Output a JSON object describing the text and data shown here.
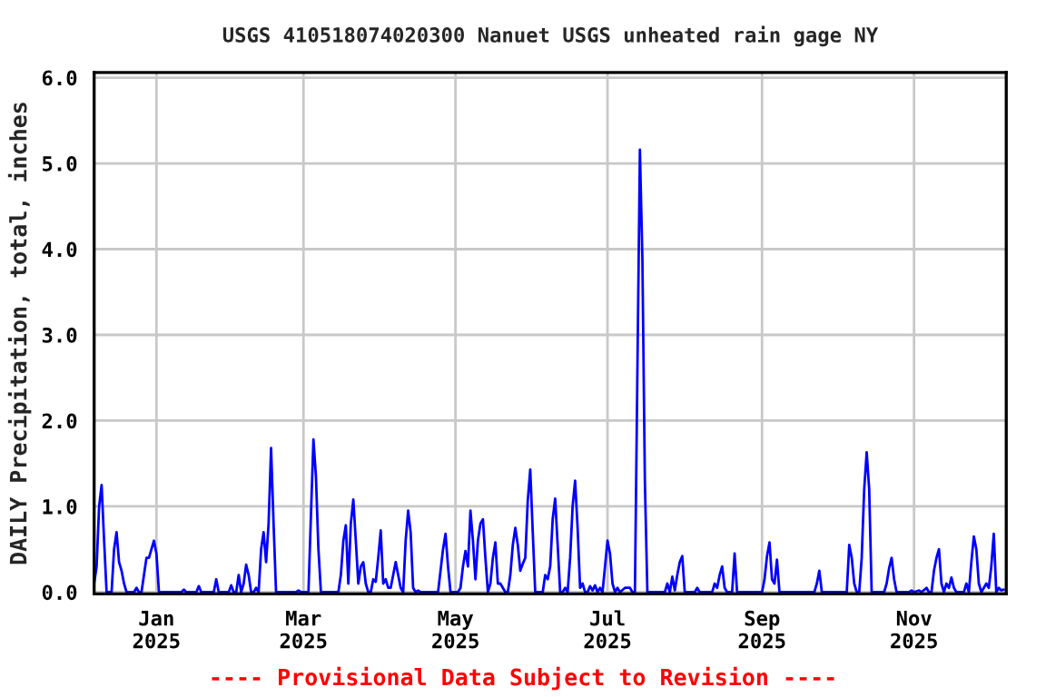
{
  "chart_data": {
    "type": "line",
    "title": "USGS 410518074020300 Nanuet USGS unheated rain gage NY",
    "ylabel": "DAILY Precipitation, total, inches",
    "annotations": [
      "---- Provisional Data Subject to Revision ----"
    ],
    "xlim": [
      "2024-12-07",
      "2025-12-08"
    ],
    "xticks": [
      {
        "value": "2025-01-01",
        "label": "Jan\n2025"
      },
      {
        "value": "2025-03-01",
        "label": "Mar\n2025"
      },
      {
        "value": "2025-05-01",
        "label": "May\n2025"
      },
      {
        "value": "2025-07-01",
        "label": "Jul\n2025"
      },
      {
        "value": "2025-09-01",
        "label": "Sep\n2025"
      },
      {
        "value": "2025-11-01",
        "label": "Nov\n2025"
      }
    ],
    "ylim": [
      -0.02,
      6.06
    ],
    "yticks": [
      {
        "value": 0,
        "label": "0.0"
      },
      {
        "value": 1,
        "label": "1.0"
      },
      {
        "value": 2,
        "label": "2.0"
      },
      {
        "value": 3,
        "label": "3.0"
      },
      {
        "value": 4,
        "label": "4.0"
      },
      {
        "value": 5,
        "label": "5.0"
      },
      {
        "value": 6,
        "label": "6.0"
      }
    ],
    "grid": true,
    "line_style": "solid",
    "marker": "none",
    "series": [
      {
        "color": "#0000ff",
        "x": [
          "2024-12-07",
          "2024-12-08",
          "2024-12-09",
          "2024-12-10",
          "2024-12-11",
          "2024-12-12",
          "2024-12-14",
          "2024-12-15",
          "2024-12-16",
          "2024-12-17",
          "2024-12-18",
          "2024-12-19",
          "2024-12-20",
          "2024-12-23",
          "2024-12-24",
          "2024-12-25",
          "2024-12-26",
          "2024-12-27",
          "2024-12-28",
          "2024-12-29",
          "2024-12-30",
          "2024-12-31",
          "2025-01-01",
          "2025-01-02",
          "2025-01-11",
          "2025-01-12",
          "2025-01-13",
          "2025-01-17",
          "2025-01-18",
          "2025-01-19",
          "2025-01-24",
          "2025-01-25",
          "2025-01-26",
          "2025-01-30",
          "2025-01-31",
          "2025-02-01",
          "2025-02-02",
          "2025-02-03",
          "2025-02-04",
          "2025-02-05",
          "2025-02-06",
          "2025-02-07",
          "2025-02-08",
          "2025-02-09",
          "2025-02-10",
          "2025-02-11",
          "2025-02-12",
          "2025-02-13",
          "2025-02-14",
          "2025-02-15",
          "2025-02-16",
          "2025-02-17",
          "2025-02-18",
          "2025-02-26",
          "2025-02-27",
          "2025-02-28",
          "2025-03-03",
          "2025-03-04",
          "2025-03-05",
          "2025-03-06",
          "2025-03-07",
          "2025-03-08",
          "2025-03-15",
          "2025-03-16",
          "2025-03-17",
          "2025-03-18",
          "2025-03-19",
          "2025-03-20",
          "2025-03-21",
          "2025-03-22",
          "2025-03-23",
          "2025-03-24",
          "2025-03-25",
          "2025-03-26",
          "2025-03-27",
          "2025-03-28",
          "2025-03-29",
          "2025-03-30",
          "2025-03-31",
          "2025-04-01",
          "2025-04-02",
          "2025-04-03",
          "2025-04-04",
          "2025-04-05",
          "2025-04-06",
          "2025-04-07",
          "2025-04-08",
          "2025-04-09",
          "2025-04-10",
          "2025-04-11",
          "2025-04-12",
          "2025-04-13",
          "2025-04-14",
          "2025-04-15",
          "2025-04-16",
          "2025-04-17",
          "2025-04-24",
          "2025-04-25",
          "2025-04-26",
          "2025-04-27",
          "2025-04-28",
          "2025-04-29",
          "2025-05-02",
          "2025-05-03",
          "2025-05-04",
          "2025-05-05",
          "2025-05-06",
          "2025-05-07",
          "2025-05-08",
          "2025-05-09",
          "2025-05-10",
          "2025-05-11",
          "2025-05-12",
          "2025-05-13",
          "2025-05-14",
          "2025-05-15",
          "2025-05-16",
          "2025-05-17",
          "2025-05-18",
          "2025-05-19",
          "2025-05-20",
          "2025-05-21",
          "2025-05-22",
          "2025-05-23",
          "2025-05-24",
          "2025-05-25",
          "2025-05-26",
          "2025-05-27",
          "2025-05-28",
          "2025-05-29",
          "2025-05-30",
          "2025-05-31",
          "2025-06-01",
          "2025-06-02",
          "2025-06-05",
          "2025-06-06",
          "2025-06-07",
          "2025-06-08",
          "2025-06-09",
          "2025-06-10",
          "2025-06-11",
          "2025-06-12",
          "2025-06-13",
          "2025-06-14",
          "2025-06-15",
          "2025-06-16",
          "2025-06-17",
          "2025-06-18",
          "2025-06-19",
          "2025-06-20",
          "2025-06-21",
          "2025-06-22",
          "2025-06-23",
          "2025-06-24",
          "2025-06-25",
          "2025-06-26",
          "2025-06-27",
          "2025-06-28",
          "2025-06-29",
          "2025-06-30",
          "2025-07-01",
          "2025-07-02",
          "2025-07-03",
          "2025-07-04",
          "2025-07-05",
          "2025-07-06",
          "2025-07-08",
          "2025-07-10",
          "2025-07-11",
          "2025-07-12",
          "2025-07-13",
          "2025-07-14",
          "2025-07-15",
          "2025-07-16",
          "2025-07-17",
          "2025-07-24",
          "2025-07-25",
          "2025-07-26",
          "2025-07-27",
          "2025-07-28",
          "2025-07-29",
          "2025-07-30",
          "2025-07-31",
          "2025-08-01",
          "2025-08-05",
          "2025-08-06",
          "2025-08-07",
          "2025-08-12",
          "2025-08-13",
          "2025-08-14",
          "2025-08-15",
          "2025-08-16",
          "2025-08-17",
          "2025-08-18",
          "2025-08-20",
          "2025-08-21",
          "2025-08-22",
          "2025-09-01",
          "2025-09-02",
          "2025-09-03",
          "2025-09-04",
          "2025-09-05",
          "2025-09-06",
          "2025-09-07",
          "2025-09-08",
          "2025-09-22",
          "2025-09-23",
          "2025-09-24",
          "2025-09-25",
          "2025-10-05",
          "2025-10-06",
          "2025-10-07",
          "2025-10-08",
          "2025-10-09",
          "2025-10-10",
          "2025-10-11",
          "2025-10-12",
          "2025-10-13",
          "2025-10-14",
          "2025-10-15",
          "2025-10-20",
          "2025-10-21",
          "2025-10-22",
          "2025-10-23",
          "2025-10-24",
          "2025-10-25",
          "2025-10-30",
          "2025-10-31",
          "2025-11-01",
          "2025-11-03",
          "2025-11-04",
          "2025-11-06",
          "2025-11-07",
          "2025-11-08",
          "2025-11-09",
          "2025-11-10",
          "2025-11-11",
          "2025-11-12",
          "2025-11-13",
          "2025-11-14",
          "2025-11-15",
          "2025-11-16",
          "2025-11-17",
          "2025-11-18",
          "2025-11-21",
          "2025-11-22",
          "2025-11-23",
          "2025-11-24",
          "2025-11-25",
          "2025-11-26",
          "2025-11-27",
          "2025-11-28",
          "2025-11-30",
          "2025-12-01",
          "2025-12-02",
          "2025-12-03",
          "2025-12-04",
          "2025-12-05",
          "2025-12-06",
          "2025-12-07"
        ],
        "values": [
          0.1,
          0.3,
          1.0,
          1.25,
          0.6,
          0,
          0,
          0.5,
          0.7,
          0.35,
          0.25,
          0.1,
          0,
          0,
          0.05,
          0,
          0,
          0.2,
          0.4,
          0.4,
          0.5,
          0.6,
          0.45,
          0,
          0,
          0.03,
          0,
          0,
          0.07,
          0,
          0,
          0.15,
          0,
          0,
          0.08,
          0,
          0,
          0.2,
          0,
          0.1,
          0.32,
          0.2,
          0,
          0,
          0.05,
          0,
          0.5,
          0.7,
          0.35,
          0.8,
          1.68,
          0.8,
          0,
          0,
          0.02,
          0,
          0,
          0.9,
          1.78,
          1.35,
          0.5,
          0,
          0,
          0.2,
          0.6,
          0.78,
          0.1,
          0.8,
          1.08,
          0.6,
          0.1,
          0.3,
          0.35,
          0.1,
          0,
          0,
          0.15,
          0.12,
          0.4,
          0.72,
          0.1,
          0.15,
          0.05,
          0.05,
          0.2,
          0.35,
          0.2,
          0.05,
          0,
          0.6,
          0.95,
          0.7,
          0.05,
          0,
          0.02,
          0,
          0,
          0.25,
          0.5,
          0.68,
          0.3,
          0,
          0,
          0.05,
          0.3,
          0.48,
          0.3,
          0.95,
          0.6,
          0.15,
          0.6,
          0.8,
          0.85,
          0.4,
          0,
          0.1,
          0.4,
          0.58,
          0.1,
          0.1,
          0.05,
          0,
          0,
          0.2,
          0.55,
          0.75,
          0.55,
          0.25,
          0.33,
          0.4,
          1.07,
          1.43,
          0.7,
          0,
          0,
          0.2,
          0.15,
          0.3,
          0.85,
          1.09,
          0.55,
          0,
          0,
          0.05,
          0,
          0.4,
          1.0,
          1.3,
          0.75,
          0.05,
          0.1,
          0,
          0,
          0.07,
          0.02,
          0.08,
          0,
          0.05,
          0,
          0.3,
          0.6,
          0.45,
          0.1,
          0,
          0.05,
          0,
          0.05,
          0.05,
          0,
          0,
          2.6,
          5.16,
          3.88,
          1.28,
          0,
          0,
          0.1,
          0,
          0.18,
          0.02,
          0.2,
          0.35,
          0.42,
          0,
          0,
          0.05,
          0,
          0,
          0.1,
          0.05,
          0.2,
          0.3,
          0.05,
          0,
          0,
          0.45,
          0,
          0,
          0.15,
          0.42,
          0.58,
          0.15,
          0.1,
          0.38,
          0,
          0,
          0.1,
          0.25,
          0,
          0,
          0.55,
          0.4,
          0.1,
          0,
          0,
          0.4,
          1.2,
          1.63,
          1.2,
          0,
          0,
          0.1,
          0.28,
          0.4,
          0.15,
          0,
          0,
          0.02,
          0,
          0.02,
          0,
          0.05,
          0,
          0,
          0.25,
          0.4,
          0.5,
          0.1,
          0,
          0.1,
          0.05,
          0.17,
          0.05,
          0,
          0,
          0.1,
          0,
          0.35,
          0.65,
          0.5,
          0.1,
          0,
          0.1,
          0.05,
          0.3,
          0.68,
          0,
          0.05,
          0.02,
          0.03
        ]
      }
    ]
  }
}
